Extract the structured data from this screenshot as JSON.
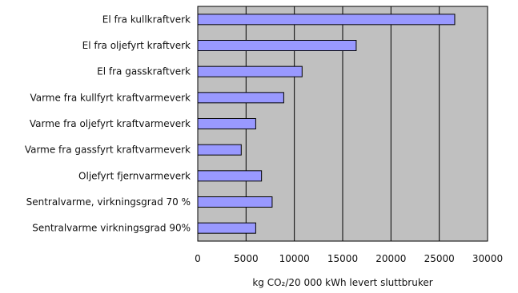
{
  "chart_data": {
    "type": "bar",
    "orientation": "horizontal",
    "categories": [
      "El fra kullkraftverk",
      "El fra oljefyrt kraftverk",
      "El fra gasskraftverk",
      "Varme fra kullfyrt kraftvarmeverk",
      "Varme fra oljefyrt kraftvarmeverk",
      "Varme fra gassfyrt kraftvarmeverk",
      "Oljefyrt fjernvarmeverk",
      "Sentralvarme, virkningsgrad 70 %",
      "Sentralvarme virkningsgrad 90%"
    ],
    "values": [
      26600,
      16400,
      10800,
      8900,
      6000,
      4500,
      6600,
      7700,
      6000
    ],
    "xlim": [
      0,
      30000
    ],
    "xticks": [
      0,
      5000,
      10000,
      15000,
      20000,
      25000,
      30000
    ],
    "tick_labels": [
      "0",
      "5000",
      "10000",
      "15000",
      "20000",
      "25000",
      "30000"
    ],
    "xlabel": "kg CO₂/20 000 kWh levert sluttbruker",
    "title": "",
    "grid": "vertical",
    "colors": {
      "plot_background": "#c0c0c0",
      "bar_fill": "#9999ff",
      "bar_stroke": "#000000",
      "grid": "#000000"
    }
  }
}
